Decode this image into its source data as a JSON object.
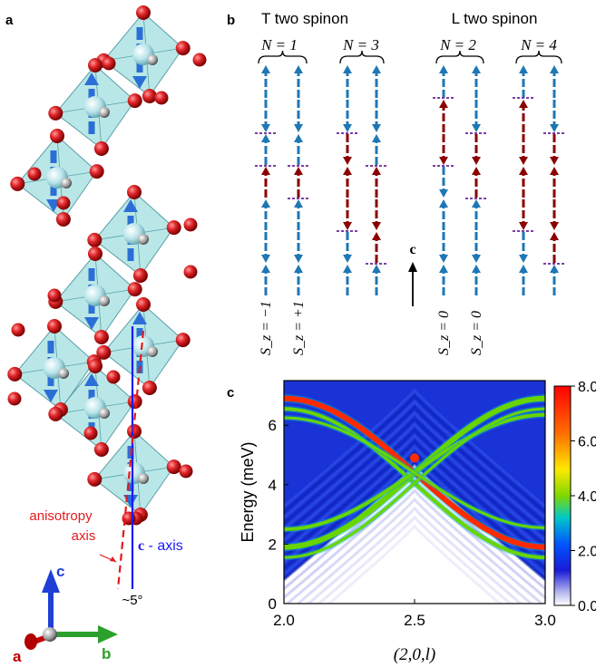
{
  "panel_labels": {
    "a": "a",
    "b": "b",
    "c": "c"
  },
  "panel_a": {
    "anisotropy_label_1": "anisotropy",
    "anisotropy_label_2": "axis",
    "c_axis_label_bold": "c",
    "c_axis_label_rest": " - axis",
    "angle_label": "~5°",
    "axis_a": "a",
    "axis_b": "b",
    "axis_c": "c",
    "colors": {
      "octahedron": "#7fd3d3",
      "oxygen": "#d7191c",
      "spin_blue": "#2b6fd6",
      "c_axis": "#1a1aff",
      "anisotropy": "#e41a1c",
      "axis_a": "#c00000",
      "axis_b": "#2ca02c",
      "axis_c": "#1f3fd6"
    }
  },
  "panel_b": {
    "title_T": "T two spinon",
    "title_L": "L two spinon",
    "N_labels": [
      "N = 1",
      "N = 3",
      "N = 2",
      "N = 4"
    ],
    "Sz_labels": [
      "S_z = −1",
      "S_z = +1",
      "S_z = 0",
      "S_z = 0"
    ],
    "c_arrow_label": "c",
    "colors": {
      "up_down_blue": "#1f77b4",
      "flipped_red": "#8b0000",
      "domain_wall": "#7b3fa0"
    }
  },
  "chart_data": {
    "type": "heatmap",
    "xlabel": "(2,0,l)",
    "ylabel": "Energy (meV)",
    "x_ticks": [
      "2.0",
      "2.5",
      "3.0"
    ],
    "y_ticks": [
      "0",
      "2",
      "4",
      "6"
    ],
    "xlim": [
      2.0,
      3.0
    ],
    "ylim": [
      0,
      7.5
    ],
    "colorbar": {
      "min": 0.0,
      "max": 8.0,
      "ticks": [
        "0.0",
        "2.0",
        "4.0",
        "6.0",
        "8.0"
      ]
    },
    "dispersion": {
      "crossing_point": {
        "l": 2.5,
        "energy": 4.9,
        "intensity": 8.0
      },
      "upper_branch_edge_energy": 6.9,
      "lower_branch_edge_energy": 1.9,
      "branch_intensities": [
        8.0,
        3.5,
        2.5,
        2.0
      ]
    }
  }
}
